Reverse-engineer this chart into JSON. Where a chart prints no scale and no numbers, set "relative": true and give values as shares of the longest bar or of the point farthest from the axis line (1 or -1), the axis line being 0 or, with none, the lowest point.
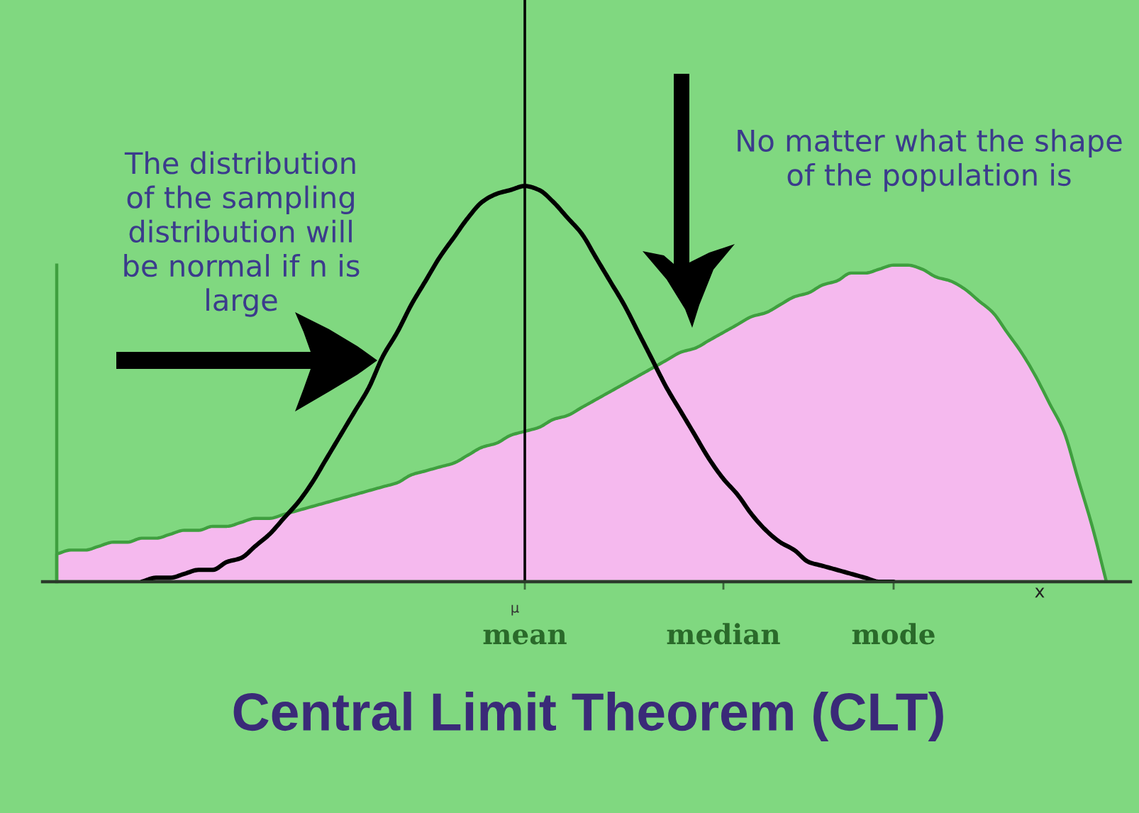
{
  "chart_data": {
    "type": "line",
    "relative": true,
    "title": "Central Limit Theorem (CLT)",
    "xlabel": "x",
    "categories": [
      null,
      null,
      null,
      null,
      null,
      null,
      null,
      null,
      null,
      null,
      null,
      null,
      null,
      null,
      null,
      null,
      null,
      null,
      null,
      null,
      null,
      null,
      null,
      null,
      null,
      null,
      null,
      null,
      null,
      null,
      null,
      null,
      null,
      "mean",
      null,
      null,
      null,
      null,
      null,
      null,
      null,
      null,
      null,
      null,
      null,
      null,
      null,
      "median",
      null,
      null,
      null,
      null,
      null,
      null,
      null,
      null,
      null,
      null,
      null,
      "mode",
      null,
      null,
      null,
      null,
      null,
      null,
      null,
      null,
      null,
      null,
      null,
      null,
      null,
      null,
      null
    ],
    "series": [
      {
        "type": "area",
        "color": "#f5b9ee",
        "values": [
          0.07,
          0.08,
          0.08,
          0.09,
          0.1,
          0.1,
          0.11,
          0.11,
          0.12,
          0.13,
          0.13,
          0.14,
          0.14,
          0.15,
          0.16,
          0.16,
          0.17,
          0.18,
          0.19,
          0.2,
          0.21,
          0.22,
          0.23,
          0.24,
          0.25,
          0.27,
          0.28,
          0.29,
          0.3,
          0.32,
          0.34,
          0.35,
          0.37,
          0.38,
          0.39,
          0.41,
          0.42,
          0.44,
          0.46,
          0.48,
          0.5,
          0.52,
          0.54,
          0.56,
          0.58,
          0.59,
          0.61,
          0.63,
          0.65,
          0.67,
          0.68,
          0.7,
          0.72,
          0.73,
          0.75,
          0.76,
          0.78,
          0.78,
          0.79,
          0.8,
          0.8,
          0.79,
          0.77,
          0.76,
          0.74,
          0.71,
          0.68,
          0.63,
          0.58,
          0.52,
          0.45,
          0.38,
          0.26,
          0.14,
          0
        ]
      },
      {
        "color": "#000000",
        "values": [
          null,
          null,
          null,
          null,
          null,
          null,
          0,
          0.01,
          0.01,
          0.02,
          0.03,
          0.03,
          0.05,
          0.06,
          0.09,
          0.12,
          0.16,
          0.2,
          0.25,
          0.31,
          0.37,
          0.43,
          0.49,
          0.57,
          0.63,
          0.7,
          0.76,
          0.82,
          0.87,
          0.92,
          0.96,
          0.98,
          0.99,
          1,
          0.99,
          0.96,
          0.92,
          0.88,
          0.82,
          0.76,
          0.7,
          0.63,
          0.56,
          0.49,
          0.43,
          0.37,
          0.31,
          0.26,
          0.22,
          0.17,
          0.13,
          0.1,
          0.08,
          0.05,
          0.04,
          0.03,
          0.02,
          0.01,
          0,
          0,
          null,
          null,
          null,
          null,
          null,
          null,
          null,
          null,
          null,
          null,
          null,
          null,
          null,
          null,
          null
        ]
      }
    ],
    "ref_lines": [
      {
        "axis": "x",
        "value": "mean",
        "color": "#000000"
      }
    ],
    "annotations": [
      "The distribution\nof the sampling\ndistribution will\nbe normal if n is\nlarge",
      "No matter what the shape\nof the population is",
      "μ"
    ]
  }
}
